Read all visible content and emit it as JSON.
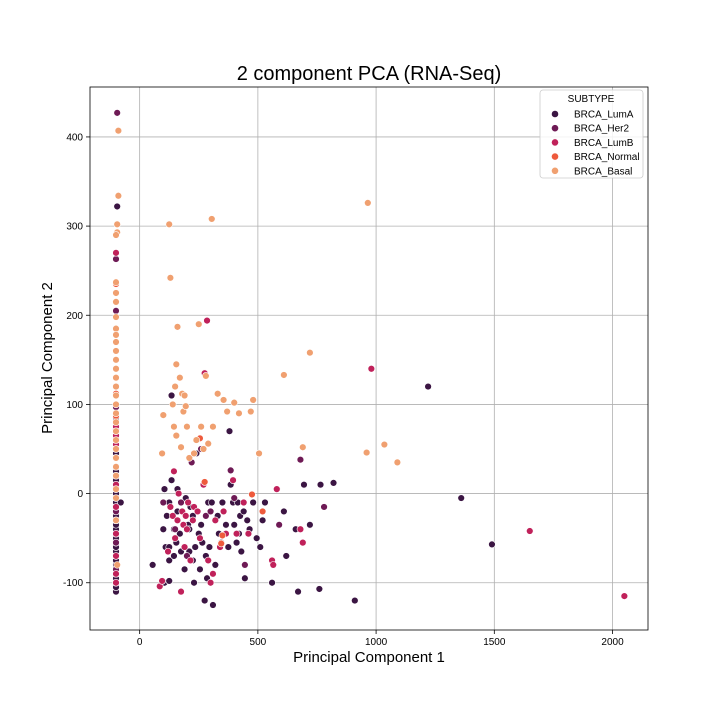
{
  "chart_data": {
    "type": "scatter",
    "title": "2 component PCA (RNA-Seq)",
    "xlabel": "Principal Component 1",
    "ylabel": "Principal Component 2",
    "xlim": [
      -210,
      2150
    ],
    "ylim": [
      -153,
      456
    ],
    "xticks": [
      0,
      500,
      1000,
      1500,
      2000
    ],
    "yticks": [
      -100,
      0,
      100,
      200,
      300,
      400
    ],
    "grid": true,
    "legend": {
      "title": "SUBTYPE",
      "placement": "top-right"
    },
    "series": [
      {
        "name": "BRCA_LumA",
        "color": "#3b1543",
        "points": [
          [
            -100,
            -110
          ],
          [
            -100,
            -105
          ],
          [
            -100,
            -100
          ],
          [
            -100,
            -95
          ],
          [
            -100,
            -90
          ],
          [
            -100,
            -85
          ],
          [
            -100,
            -80
          ],
          [
            -100,
            -75
          ],
          [
            -100,
            -70
          ],
          [
            -100,
            -65
          ],
          [
            -100,
            -60
          ],
          [
            -100,
            -55
          ],
          [
            -100,
            -50
          ],
          [
            -100,
            -45
          ],
          [
            -100,
            -40
          ],
          [
            -100,
            -35
          ],
          [
            -100,
            -30
          ],
          [
            -100,
            -25
          ],
          [
            -100,
            -20
          ],
          [
            -100,
            -15
          ],
          [
            -100,
            -10
          ],
          [
            -100,
            -5
          ],
          [
            -100,
            0
          ],
          [
            -100,
            5
          ],
          [
            -100,
            15
          ],
          [
            -100,
            25
          ],
          [
            -100,
            45
          ],
          [
            -100,
            60
          ],
          [
            -100,
            72
          ],
          [
            -100,
            85
          ],
          [
            -95,
            322
          ],
          [
            -80,
            -10
          ],
          [
            55,
            -80
          ],
          [
            100,
            -40
          ],
          [
            105,
            -100
          ],
          [
            105,
            5
          ],
          [
            110,
            -60
          ],
          [
            115,
            -25
          ],
          [
            125,
            -10
          ],
          [
            125,
            -60
          ],
          [
            125,
            -75
          ],
          [
            125,
            -98
          ],
          [
            135,
            110
          ],
          [
            135,
            15
          ],
          [
            145,
            -40
          ],
          [
            145,
            -70
          ],
          [
            155,
            -55
          ],
          [
            160,
            -20
          ],
          [
            160,
            5
          ],
          [
            170,
            -45
          ],
          [
            175,
            -65
          ],
          [
            190,
            -85
          ],
          [
            195,
            -5
          ],
          [
            205,
            -35
          ],
          [
            210,
            -40
          ],
          [
            210,
            -65
          ],
          [
            215,
            -15
          ],
          [
            225,
            -25
          ],
          [
            225,
            -75
          ],
          [
            230,
            -100
          ],
          [
            235,
            -60
          ],
          [
            240,
            45
          ],
          [
            250,
            -45
          ],
          [
            255,
            -85
          ],
          [
            260,
            -35
          ],
          [
            265,
            -55
          ],
          [
            275,
            -120
          ],
          [
            280,
            -70
          ],
          [
            285,
            -95
          ],
          [
            290,
            -10
          ],
          [
            295,
            -60
          ],
          [
            305,
            -10
          ],
          [
            310,
            -125
          ],
          [
            320,
            -80
          ],
          [
            330,
            -25
          ],
          [
            335,
            -45
          ],
          [
            345,
            -55
          ],
          [
            350,
            -10
          ],
          [
            365,
            -35
          ],
          [
            375,
            -60
          ],
          [
            380,
            70
          ],
          [
            385,
            10
          ],
          [
            395,
            -10
          ],
          [
            400,
            -35
          ],
          [
            410,
            -55
          ],
          [
            415,
            -10
          ],
          [
            420,
            -45
          ],
          [
            425,
            -25
          ],
          [
            430,
            -65
          ],
          [
            440,
            -20
          ],
          [
            445,
            -95
          ],
          [
            455,
            -30
          ],
          [
            465,
            -40
          ],
          [
            480,
            -10
          ],
          [
            495,
            -50
          ],
          [
            510,
            -60
          ],
          [
            520,
            -30
          ],
          [
            530,
            -10
          ],
          [
            560,
            -100
          ],
          [
            610,
            -20
          ],
          [
            620,
            -70
          ],
          [
            660,
            -40
          ],
          [
            670,
            -110
          ],
          [
            695,
            10
          ],
          [
            720,
            -35
          ],
          [
            760,
            -107
          ],
          [
            765,
            10
          ],
          [
            820,
            12
          ],
          [
            910,
            -120
          ],
          [
            1220,
            120
          ],
          [
            1360,
            -5
          ],
          [
            1490,
            -57
          ]
        ]
      },
      {
        "name": "BRCA_Her2",
        "color": "#6e1a55",
        "points": [
          [
            -95,
            427
          ],
          [
            -100,
            270
          ],
          [
            -100,
            263
          ],
          [
            -100,
            205
          ],
          [
            -100,
            120
          ],
          [
            -100,
            97
          ],
          [
            -100,
            20
          ],
          [
            -100,
            -20
          ],
          [
            -100,
            -55
          ],
          [
            -100,
            -85
          ],
          [
            100,
            -10
          ],
          [
            150,
            -40
          ],
          [
            175,
            -10
          ],
          [
            200,
            -70
          ],
          [
            220,
            35
          ],
          [
            260,
            50
          ],
          [
            280,
            -25
          ],
          [
            300,
            -20
          ],
          [
            385,
            26
          ],
          [
            400,
            -5
          ],
          [
            445,
            -80
          ],
          [
            590,
            -35
          ],
          [
            680,
            38
          ],
          [
            780,
            -15
          ]
        ]
      },
      {
        "name": "BRCA_LumB",
        "color": "#c0215a",
        "points": [
          [
            -100,
            -100
          ],
          [
            -100,
            -90
          ],
          [
            -100,
            -70
          ],
          [
            -100,
            -45
          ],
          [
            -100,
            -30
          ],
          [
            -100,
            -15
          ],
          [
            -100,
            10
          ],
          [
            -100,
            30
          ],
          [
            -100,
            40
          ],
          [
            -100,
            55
          ],
          [
            -100,
            65
          ],
          [
            -100,
            75
          ],
          [
            -100,
            120
          ],
          [
            -100,
            270
          ],
          [
            85,
            -104
          ],
          [
            95,
            -98
          ],
          [
            120,
            -65
          ],
          [
            130,
            -15
          ],
          [
            140,
            -25
          ],
          [
            145,
            25
          ],
          [
            150,
            -50
          ],
          [
            160,
            -30
          ],
          [
            165,
            0
          ],
          [
            175,
            -110
          ],
          [
            180,
            -20
          ],
          [
            185,
            -35
          ],
          [
            190,
            -60
          ],
          [
            195,
            -25
          ],
          [
            200,
            -40
          ],
          [
            205,
            -10
          ],
          [
            215,
            -75
          ],
          [
            225,
            -30
          ],
          [
            230,
            -15
          ],
          [
            245,
            -20
          ],
          [
            255,
            -50
          ],
          [
            270,
            10
          ],
          [
            275,
            135
          ],
          [
            285,
            194
          ],
          [
            290,
            -75
          ],
          [
            300,
            -100
          ],
          [
            310,
            -90
          ],
          [
            320,
            -30
          ],
          [
            340,
            -60
          ],
          [
            355,
            -20
          ],
          [
            365,
            -45
          ],
          [
            395,
            15
          ],
          [
            410,
            -45
          ],
          [
            440,
            -10
          ],
          [
            460,
            -45
          ],
          [
            560,
            -75
          ],
          [
            565,
            -80
          ],
          [
            580,
            5
          ],
          [
            680,
            -40
          ],
          [
            690,
            -55
          ],
          [
            980,
            140
          ],
          [
            1650,
            -42
          ],
          [
            2050,
            -115
          ]
        ]
      },
      {
        "name": "BRCA_Normal",
        "color": "#ee5a3c",
        "points": [
          [
            -100,
            235
          ],
          [
            -100,
            225
          ],
          [
            -100,
            112
          ],
          [
            -100,
            87
          ],
          [
            -100,
            70
          ],
          [
            -100,
            50
          ],
          [
            255,
            62
          ],
          [
            275,
            13
          ],
          [
            345,
            -56
          ],
          [
            350,
            -47
          ],
          [
            475,
            -1
          ],
          [
            520,
            -20
          ]
        ]
      },
      {
        "name": "BRCA_Basal",
        "color": "#f0a070",
        "points": [
          [
            -90,
            407
          ],
          [
            -90,
            334
          ],
          [
            -95,
            302
          ],
          [
            -95,
            293
          ],
          [
            -100,
            290
          ],
          [
            -100,
            237
          ],
          [
            -100,
            225
          ],
          [
            -100,
            215
          ],
          [
            -100,
            198
          ],
          [
            -100,
            185
          ],
          [
            -100,
            178
          ],
          [
            -100,
            170
          ],
          [
            -100,
            160
          ],
          [
            -100,
            150
          ],
          [
            -100,
            140
          ],
          [
            -100,
            130
          ],
          [
            -100,
            120
          ],
          [
            -100,
            110
          ],
          [
            -100,
            100
          ],
          [
            -100,
            90
          ],
          [
            -100,
            80
          ],
          [
            -100,
            70
          ],
          [
            -100,
            60
          ],
          [
            -100,
            50
          ],
          [
            -100,
            40
          ],
          [
            -100,
            30
          ],
          [
            -100,
            20
          ],
          [
            -100,
            5
          ],
          [
            -100,
            -5
          ],
          [
            -100,
            -30
          ],
          [
            -95,
            -80
          ],
          [
            95,
            45
          ],
          [
            100,
            88
          ],
          [
            125,
            302
          ],
          [
            130,
            242
          ],
          [
            140,
            100
          ],
          [
            145,
            75
          ],
          [
            150,
            120
          ],
          [
            155,
            65
          ],
          [
            155,
            145
          ],
          [
            160,
            187
          ],
          [
            170,
            130
          ],
          [
            175,
            52
          ],
          [
            180,
            112
          ],
          [
            185,
            92
          ],
          [
            190,
            110
          ],
          [
            195,
            98
          ],
          [
            200,
            75
          ],
          [
            210,
            40
          ],
          [
            230,
            45
          ],
          [
            240,
            60
          ],
          [
            250,
            190
          ],
          [
            260,
            75
          ],
          [
            270,
            50
          ],
          [
            280,
            132
          ],
          [
            290,
            56
          ],
          [
            305,
            308
          ],
          [
            310,
            75
          ],
          [
            330,
            112
          ],
          [
            355,
            105
          ],
          [
            370,
            92
          ],
          [
            400,
            102
          ],
          [
            420,
            90
          ],
          [
            470,
            92
          ],
          [
            480,
            105
          ],
          [
            505,
            45
          ],
          [
            610,
            133
          ],
          [
            690,
            52
          ],
          [
            720,
            158
          ],
          [
            960,
            46
          ],
          [
            965,
            326
          ],
          [
            1035,
            55
          ],
          [
            1090,
            35
          ]
        ]
      }
    ]
  }
}
